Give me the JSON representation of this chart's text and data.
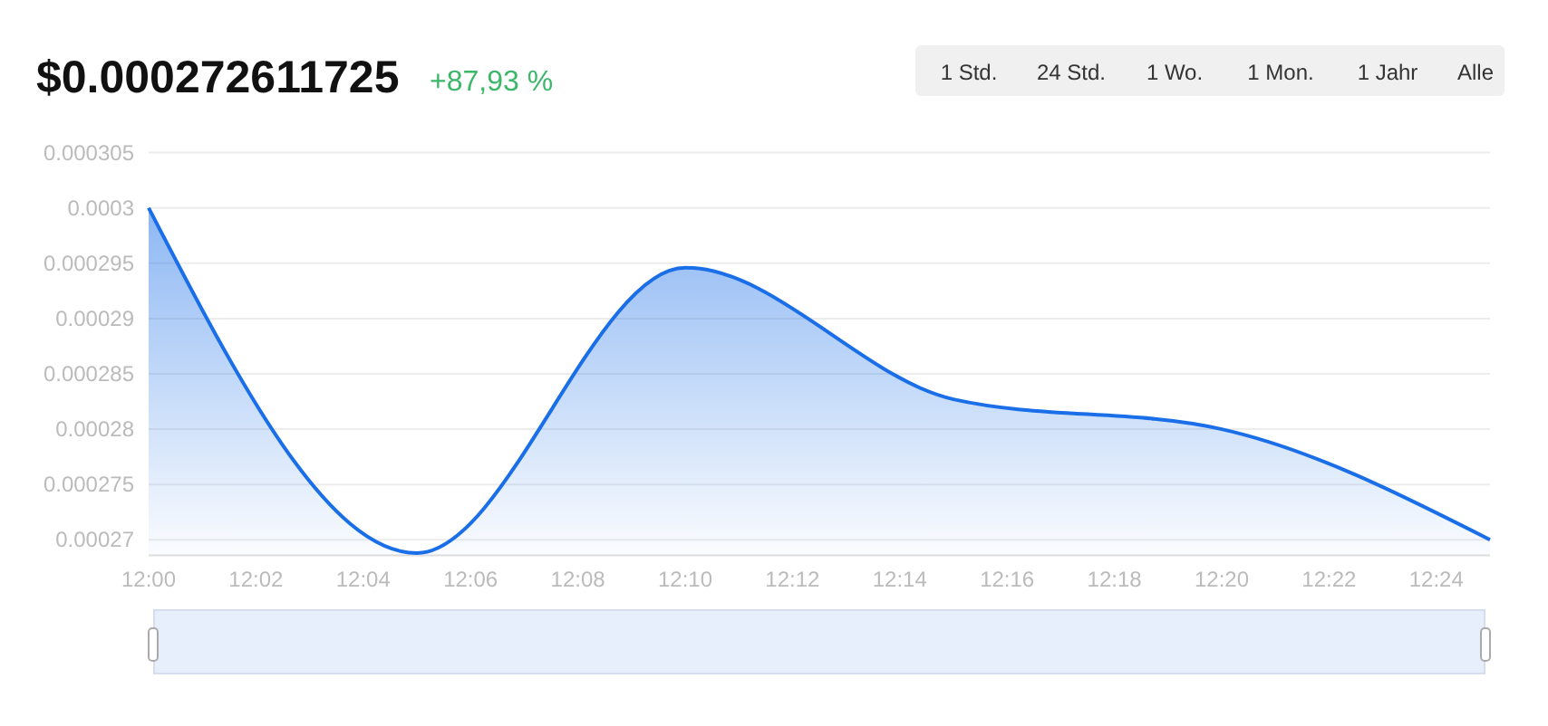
{
  "chart_data": {
    "type": "area",
    "title": "$0.000272611725",
    "subtitle": "+87,93 %",
    "annotations": [
      "1 Std.",
      "24 Std.",
      "1 Wo.",
      "1 Mon.",
      "1 Jahr",
      "Alle"
    ],
    "x": [
      12,
      12.083333,
      12.166667,
      12.25,
      12.333333,
      12.416667
    ],
    "series": [
      {
        "color": "#1a6fe8",
        "values": [
          0.0003,
          0.0002688,
          0.0002946,
          0.0002827,
          0.00028,
          0.00027
        ]
      }
    ],
    "xlim": [
      12,
      12.416667
    ],
    "xticks": [
      {
        "value": 12,
        "label": "12:00"
      },
      {
        "value": 12.033333,
        "label": "12:02"
      },
      {
        "value": 12.066667,
        "label": "12:04"
      },
      {
        "value": 12.1,
        "label": "12:06"
      },
      {
        "value": 12.133333,
        "label": "12:08"
      },
      {
        "value": 12.166667,
        "label": "12:10"
      },
      {
        "value": 12.2,
        "label": "12:12"
      },
      {
        "value": 12.233333,
        "label": "12:14"
      },
      {
        "value": 12.266667,
        "label": "12:16"
      },
      {
        "value": 12.3,
        "label": "12:18"
      },
      {
        "value": 12.333333,
        "label": "12:20"
      },
      {
        "value": 12.366667,
        "label": "12:22"
      },
      {
        "value": 12.4,
        "label": "12:24"
      }
    ],
    "ylim": [
      0.0002686,
      0.000305
    ],
    "yticks": [
      {
        "value": 0.00027,
        "label": "0.00027"
      },
      {
        "value": 0.000275,
        "label": "0.000275"
      },
      {
        "value": 0.00028,
        "label": "0.00028"
      },
      {
        "value": 0.000285,
        "label": "0.000285"
      },
      {
        "value": 0.00029,
        "label": "0.00029"
      },
      {
        "value": 0.000295,
        "label": "0.000295"
      },
      {
        "value": 0.0003,
        "label": "0.0003"
      },
      {
        "value": 0.000305,
        "label": "0.000305"
      }
    ],
    "grid": "y"
  }
}
